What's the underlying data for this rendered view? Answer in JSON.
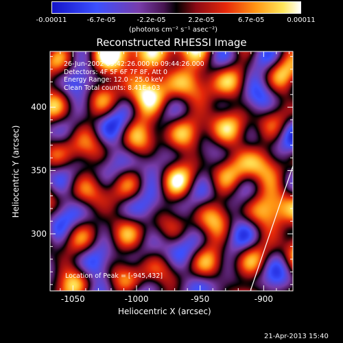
{
  "colorbar": {
    "tick_labels": [
      "-0.00011",
      "-6.7e-05",
      "-2.2e-05",
      "2.2e-05",
      "6.7e-05",
      "0.00011"
    ],
    "unit_label": "(photons cm⁻² s⁻¹ asec⁻²)",
    "range": [
      -0.00011,
      0.00011
    ]
  },
  "chart_data": {
    "type": "heatmap",
    "title": "Reconstructed RHESSI Image",
    "xlabel": "Heliocentric X (arcsec)",
    "ylabel": "Heliocentric Y (arcsec)",
    "xlim": [
      -1068,
      -877
    ],
    "ylim": [
      255,
      444
    ],
    "x_ticks": [
      -1050,
      -1000,
      -950,
      -900
    ],
    "y_ticks": [
      300,
      350,
      400
    ],
    "annotations": [
      "26-Jun-2002 09:42:26.000 to 09:44:26.000",
      "Detectors: 4F 5F 6F 7F 8F, Att 0",
      "Energy Range: 12.0 - 25.0 keV",
      "Clean    Total counts: 8.41E+03",
      "Location of Peak = [-945,432]"
    ],
    "peak": {
      "x": -945,
      "y": 432
    },
    "colormap": "blue-white-red",
    "limb_line": true
  },
  "footer": {
    "timestamp": "21-Apr-2013 15:40"
  }
}
